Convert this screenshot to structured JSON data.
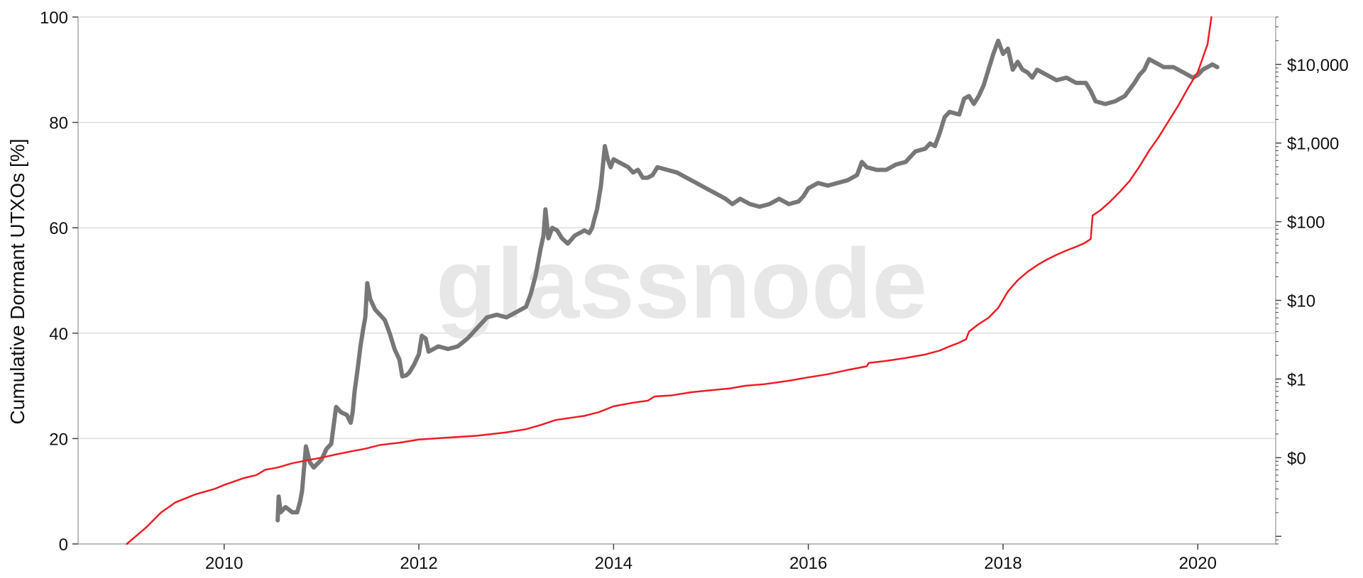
{
  "watermark": "glassnode",
  "chart_data": {
    "type": "line",
    "xlabel": "",
    "ylabel": "Cumulative Dormant UTXOs [%]",
    "y2label": "",
    "xlim": [
      2008.5,
      2020.8
    ],
    "ylim": [
      0,
      100
    ],
    "y2lim": [
      0.008,
      40000
    ],
    "y2_scale": "log",
    "grid": true,
    "legend": "none",
    "x_ticks": [
      2010,
      2012,
      2014,
      2016,
      2018,
      2020
    ],
    "x_tick_labels": [
      "2010",
      "2012",
      "2014",
      "2016",
      "2018",
      "2020"
    ],
    "y_ticks": [
      0,
      20,
      40,
      60,
      80,
      100
    ],
    "y_tick_labels": [
      "0",
      "20",
      "40",
      "60",
      "80",
      "100"
    ],
    "y2_ticks": [
      0.1,
      1,
      10,
      100,
      1000,
      10000
    ],
    "y2_tick_labels": [
      "$0",
      "$1",
      "$10",
      "$100",
      "$1,000",
      "$10,000"
    ],
    "colors": {
      "grid": "#dddddd",
      "axis": "#aaaaaa",
      "series_1": "#777777",
      "series_2": "#f01c24"
    },
    "series": [
      {
        "axis": "left",
        "color": "#777777",
        "points": [
          [
            2010.55,
            4.5
          ],
          [
            2010.56,
            9.0
          ],
          [
            2010.58,
            6.0
          ],
          [
            2010.63,
            7.0
          ],
          [
            2010.7,
            6.0
          ],
          [
            2010.75,
            6.0
          ],
          [
            2010.78,
            8.0
          ],
          [
            2010.8,
            10.0
          ],
          [
            2010.84,
            18.5
          ],
          [
            2010.88,
            15.5
          ],
          [
            2010.92,
            14.5
          ],
          [
            2011.0,
            16.0
          ],
          [
            2011.05,
            18.0
          ],
          [
            2011.1,
            19.0
          ],
          [
            2011.15,
            26.0
          ],
          [
            2011.2,
            25.0
          ],
          [
            2011.26,
            24.5
          ],
          [
            2011.3,
            23.0
          ],
          [
            2011.32,
            25.0
          ],
          [
            2011.34,
            29.0
          ],
          [
            2011.37,
            33.0
          ],
          [
            2011.4,
            37.5
          ],
          [
            2011.43,
            41.0
          ],
          [
            2011.45,
            43.0
          ],
          [
            2011.47,
            49.5
          ],
          [
            2011.5,
            46.5
          ],
          [
            2011.55,
            44.5
          ],
          [
            2011.6,
            43.5
          ],
          [
            2011.65,
            42.5
          ],
          [
            2011.7,
            40.0
          ],
          [
            2011.75,
            37.0
          ],
          [
            2011.8,
            35.0
          ],
          [
            2011.83,
            31.8
          ],
          [
            2011.87,
            32.0
          ],
          [
            2011.9,
            32.5
          ],
          [
            2011.95,
            34.0
          ],
          [
            2012.0,
            36.0
          ],
          [
            2012.03,
            39.5
          ],
          [
            2012.07,
            39.0
          ],
          [
            2012.1,
            36.5
          ],
          [
            2012.15,
            37.0
          ],
          [
            2012.2,
            37.5
          ],
          [
            2012.3,
            37.0
          ],
          [
            2012.4,
            37.5
          ],
          [
            2012.5,
            39.0
          ],
          [
            2012.6,
            41.0
          ],
          [
            2012.7,
            43.0
          ],
          [
            2012.8,
            43.5
          ],
          [
            2012.9,
            43.0
          ],
          [
            2013.0,
            44.0
          ],
          [
            2013.1,
            45.0
          ],
          [
            2013.15,
            47.5
          ],
          [
            2013.2,
            51.0
          ],
          [
            2013.25,
            56.0
          ],
          [
            2013.28,
            58.5
          ],
          [
            2013.3,
            63.5
          ],
          [
            2013.33,
            58.0
          ],
          [
            2013.37,
            60.0
          ],
          [
            2013.42,
            59.5
          ],
          [
            2013.47,
            58.0
          ],
          [
            2013.53,
            57.0
          ],
          [
            2013.6,
            58.5
          ],
          [
            2013.7,
            59.5
          ],
          [
            2013.75,
            59.0
          ],
          [
            2013.78,
            60.0
          ],
          [
            2013.8,
            61.5
          ],
          [
            2013.83,
            63.5
          ],
          [
            2013.87,
            68.0
          ],
          [
            2013.91,
            75.5
          ],
          [
            2013.94,
            73.0
          ],
          [
            2013.97,
            71.5
          ],
          [
            2014.0,
            73.0
          ],
          [
            2014.05,
            72.5
          ],
          [
            2014.1,
            72.0
          ],
          [
            2014.15,
            71.5
          ],
          [
            2014.2,
            70.5
          ],
          [
            2014.25,
            71.0
          ],
          [
            2014.3,
            69.5
          ],
          [
            2014.35,
            69.5
          ],
          [
            2014.4,
            70.0
          ],
          [
            2014.45,
            71.5
          ],
          [
            2014.55,
            71.0
          ],
          [
            2014.65,
            70.5
          ],
          [
            2014.75,
            69.5
          ],
          [
            2014.85,
            68.5
          ],
          [
            2014.95,
            67.5
          ],
          [
            2015.05,
            66.5
          ],
          [
            2015.15,
            65.5
          ],
          [
            2015.22,
            64.5
          ],
          [
            2015.3,
            65.5
          ],
          [
            2015.4,
            64.5
          ],
          [
            2015.5,
            64.0
          ],
          [
            2015.6,
            64.5
          ],
          [
            2015.7,
            65.5
          ],
          [
            2015.8,
            64.5
          ],
          [
            2015.9,
            65.0
          ],
          [
            2015.95,
            66.0
          ],
          [
            2016.0,
            67.5
          ],
          [
            2016.1,
            68.5
          ],
          [
            2016.2,
            68.0
          ],
          [
            2016.3,
            68.5
          ],
          [
            2016.4,
            69.0
          ],
          [
            2016.5,
            70.0
          ],
          [
            2016.55,
            72.5
          ],
          [
            2016.6,
            71.5
          ],
          [
            2016.7,
            71.0
          ],
          [
            2016.8,
            71.0
          ],
          [
            2016.9,
            72.0
          ],
          [
            2017.0,
            72.5
          ],
          [
            2017.1,
            74.5
          ],
          [
            2017.2,
            75.0
          ],
          [
            2017.25,
            76.0
          ],
          [
            2017.3,
            75.5
          ],
          [
            2017.35,
            78.0
          ],
          [
            2017.4,
            81.0
          ],
          [
            2017.45,
            82.0
          ],
          [
            2017.55,
            81.5
          ],
          [
            2017.6,
            84.5
          ],
          [
            2017.65,
            85.0
          ],
          [
            2017.7,
            83.5
          ],
          [
            2017.75,
            85.0
          ],
          [
            2017.8,
            87.0
          ],
          [
            2017.85,
            90.0
          ],
          [
            2017.9,
            93.0
          ],
          [
            2017.95,
            95.5
          ],
          [
            2018.0,
            93.0
          ],
          [
            2018.05,
            94.0
          ],
          [
            2018.1,
            90.0
          ],
          [
            2018.15,
            91.5
          ],
          [
            2018.2,
            90.0
          ],
          [
            2018.25,
            89.5
          ],
          [
            2018.3,
            88.5
          ],
          [
            2018.35,
            90.0
          ],
          [
            2018.45,
            89.0
          ],
          [
            2018.55,
            88.0
          ],
          [
            2018.65,
            88.5
          ],
          [
            2018.75,
            87.5
          ],
          [
            2018.85,
            87.5
          ],
          [
            2018.9,
            86.0
          ],
          [
            2018.95,
            84.0
          ],
          [
            2019.05,
            83.5
          ],
          [
            2019.15,
            84.0
          ],
          [
            2019.25,
            85.0
          ],
          [
            2019.35,
            87.5
          ],
          [
            2019.4,
            89.0
          ],
          [
            2019.45,
            90.0
          ],
          [
            2019.5,
            92.0
          ],
          [
            2019.55,
            91.5
          ],
          [
            2019.6,
            91.0
          ],
          [
            2019.65,
            90.5
          ],
          [
            2019.75,
            90.5
          ],
          [
            2019.85,
            89.5
          ],
          [
            2019.9,
            89.0
          ],
          [
            2019.95,
            88.5
          ],
          [
            2020.0,
            89.0
          ],
          [
            2020.05,
            90.0
          ],
          [
            2020.1,
            90.5
          ],
          [
            2020.15,
            91.0
          ],
          [
            2020.2,
            90.5
          ]
        ]
      },
      {
        "axis": "right",
        "color": "#f01c24",
        "points": [
          [
            2009.0,
            0.008
          ],
          [
            2009.2,
            0.013
          ],
          [
            2009.35,
            0.02
          ],
          [
            2009.5,
            0.027
          ],
          [
            2009.7,
            0.034
          ],
          [
            2009.9,
            0.04
          ],
          [
            2010.0,
            0.045
          ],
          [
            2010.2,
            0.055
          ],
          [
            2010.33,
            0.06
          ],
          [
            2010.42,
            0.07
          ],
          [
            2010.55,
            0.075
          ],
          [
            2010.7,
            0.085
          ],
          [
            2010.9,
            0.095
          ],
          [
            2011.0,
            0.1
          ],
          [
            2011.15,
            0.11
          ],
          [
            2011.3,
            0.12
          ],
          [
            2011.45,
            0.13
          ],
          [
            2011.6,
            0.145
          ],
          [
            2011.8,
            0.155
          ],
          [
            2012.0,
            0.17
          ],
          [
            2012.3,
            0.18
          ],
          [
            2012.6,
            0.19
          ],
          [
            2012.9,
            0.21
          ],
          [
            2013.1,
            0.23
          ],
          [
            2013.25,
            0.26
          ],
          [
            2013.4,
            0.3
          ],
          [
            2013.55,
            0.32
          ],
          [
            2013.7,
            0.34
          ],
          [
            2013.85,
            0.38
          ],
          [
            2014.0,
            0.45
          ],
          [
            2014.2,
            0.5
          ],
          [
            2014.35,
            0.53
          ],
          [
            2014.42,
            0.6
          ],
          [
            2014.6,
            0.62
          ],
          [
            2014.8,
            0.68
          ],
          [
            2015.0,
            0.72
          ],
          [
            2015.2,
            0.76
          ],
          [
            2015.35,
            0.82
          ],
          [
            2015.55,
            0.86
          ],
          [
            2015.8,
            0.95
          ],
          [
            2016.0,
            1.05
          ],
          [
            2016.2,
            1.15
          ],
          [
            2016.4,
            1.3
          ],
          [
            2016.6,
            1.45
          ],
          [
            2016.62,
            1.6
          ],
          [
            2016.8,
            1.7
          ],
          [
            2017.0,
            1.85
          ],
          [
            2017.2,
            2.05
          ],
          [
            2017.35,
            2.3
          ],
          [
            2017.45,
            2.6
          ],
          [
            2017.55,
            2.9
          ],
          [
            2017.62,
            3.2
          ],
          [
            2017.65,
            4.0
          ],
          [
            2017.75,
            5.0
          ],
          [
            2017.85,
            6.0
          ],
          [
            2017.95,
            8.0
          ],
          [
            2018.05,
            13.0
          ],
          [
            2018.15,
            18.0
          ],
          [
            2018.25,
            23.0
          ],
          [
            2018.35,
            28.0
          ],
          [
            2018.45,
            33.0
          ],
          [
            2018.55,
            38.0
          ],
          [
            2018.65,
            43.0
          ],
          [
            2018.75,
            48.0
          ],
          [
            2018.83,
            53.0
          ],
          [
            2018.9,
            60.0
          ],
          [
            2018.92,
            120.0
          ],
          [
            2019.0,
            140.0
          ],
          [
            2019.1,
            180.0
          ],
          [
            2019.2,
            240.0
          ],
          [
            2019.3,
            330.0
          ],
          [
            2019.4,
            500.0
          ],
          [
            2019.5,
            800.0
          ],
          [
            2019.6,
            1200.0
          ],
          [
            2019.7,
            1900.0
          ],
          [
            2019.8,
            3000.0
          ],
          [
            2019.9,
            5000.0
          ],
          [
            2020.0,
            8000.0
          ],
          [
            2020.05,
            12000.0
          ],
          [
            2020.1,
            18000.0
          ],
          [
            2020.14,
            40000.0
          ]
        ]
      }
    ]
  }
}
